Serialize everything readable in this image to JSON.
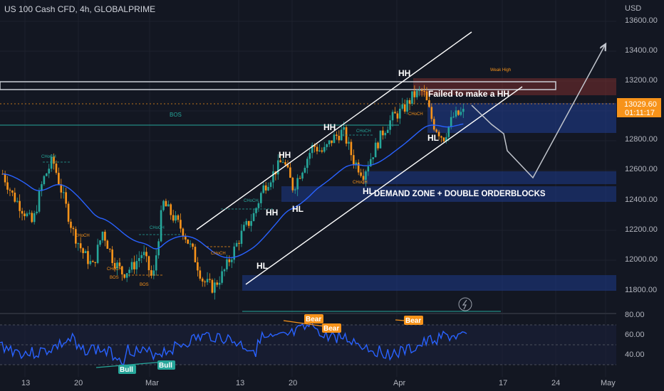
{
  "header": {
    "symbol": "US 100 Cash CFD, 4h, GLOBALPRIME",
    "currency": "USD"
  },
  "price_axis": {
    "ticks": [
      "13600.00",
      "13400.00",
      "13200.00",
      "13000.00",
      "12800.00",
      "12600.00",
      "12400.00",
      "12200.00",
      "12000.00",
      "11800.00"
    ],
    "current_price": "13029.60",
    "countdown": "01:11:17"
  },
  "rsi_axis": {
    "ticks": [
      "80.00",
      "60.00",
      "40.00"
    ]
  },
  "time_axis": {
    "ticks": [
      "13",
      "20",
      "Mar",
      "13",
      "20",
      "Apr",
      "17",
      "24",
      "May"
    ]
  },
  "annotations": {
    "hh_labels": [
      "HH",
      "HH",
      "HH",
      "HH"
    ],
    "hl_labels": [
      "HL",
      "HL",
      "HL",
      "HL"
    ],
    "hh_partial": "HH",
    "hl_partial": "HL",
    "failed_hh": "Failed to make a HH",
    "demand_zone": "DEMAND ZONE + DOUBLE ORDERBLOCKS",
    "bos": "BOS",
    "bos_small": [
      "BOS",
      "BOS"
    ],
    "choch": [
      "CHoCH",
      "CHoCH",
      "CHoCH",
      "CHoCH",
      "CHoCH",
      "CHoCH",
      "CHoCH",
      "CHoCH",
      "CHoCH"
    ],
    "weak_high": "Weak High",
    "rsi_labels": [
      "Bear",
      "Bear",
      "Bear",
      "Bull",
      "Bull"
    ]
  },
  "colors": {
    "background": "#131722",
    "bull_candle": "#26a69a",
    "bear_candle": "#f7931a",
    "ema": "#2962ff",
    "zone_blue": "#1e3a8a",
    "zone_red": "#7a2e2e",
    "rsi_line": "#2962ff",
    "price_tag": "#f7931a"
  },
  "chart_data": {
    "type": "candlestick",
    "symbol": "US 100 Cash CFD",
    "timeframe": "4h",
    "broker": "GLOBALPRIME",
    "ylim": [
      11650,
      13700
    ],
    "current_price": 13029.6,
    "closes_sampled": [
      12600,
      12450,
      12350,
      12250,
      12550,
      12700,
      12450,
      12200,
      12050,
      11950,
      12200,
      12000,
      11900,
      11950,
      12050,
      11850,
      12400,
      12300,
      12200,
      12050,
      11850,
      11800,
      11900,
      12050,
      12200,
      12300,
      12500,
      12600,
      12700,
      12500,
      12650,
      12800,
      12750,
      12850,
      12900,
      12700,
      12600,
      12750,
      12900,
      13000,
      13050,
      13150,
      13180,
      12950,
      12850,
      13000,
      13030
    ]
  }
}
